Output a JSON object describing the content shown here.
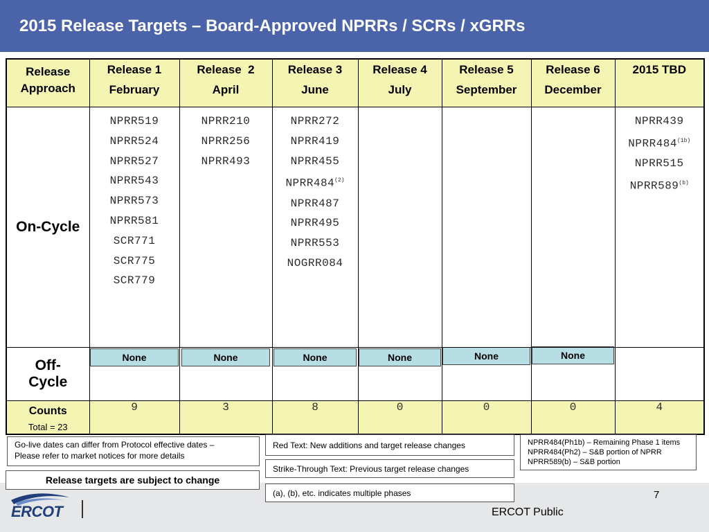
{
  "header": {
    "title": "2015 Release Targets – Board-Approved NPRRs / SCRs / xGRRs"
  },
  "table": {
    "approach_header": [
      "Release",
      "Approach"
    ],
    "columns": [
      {
        "name": "Release 1",
        "month": "February"
      },
      {
        "name": "Release  2",
        "month": "April"
      },
      {
        "name": "Release 3",
        "month": "June"
      },
      {
        "name": "Release 4",
        "month": "July"
      },
      {
        "name": "Release 5",
        "month": "September"
      },
      {
        "name": "Release 6",
        "month": "December"
      },
      {
        "name": "2015 TBD",
        "month": ""
      }
    ],
    "on_cycle_label": "On-Cycle",
    "on_cycle": {
      "release1": [
        "NPRR519",
        "NPRR524",
        "NPRR527",
        "NPRR543",
        "NPRR573",
        "NPRR581",
        "SCR771",
        "SCR775",
        "SCR779"
      ],
      "release2": [
        "NPRR210",
        "NPRR256",
        "NPRR493"
      ],
      "release3": [
        {
          "id": "NPRR272"
        },
        {
          "id": "NPRR419"
        },
        {
          "id": "NPRR455"
        },
        {
          "id": "NPRR484",
          "sup": "(2)"
        },
        {
          "id": "NPRR487"
        },
        {
          "id": "NPRR495"
        },
        {
          "id": "NPRR553"
        },
        {
          "id": "NOGRR084"
        }
      ],
      "tbd": [
        {
          "id": "NPRR439"
        },
        {
          "id": "NPRR484",
          "sup": "(1b)"
        },
        {
          "id": "NPRR515"
        },
        {
          "id": "NPRR589",
          "sup": "(b)"
        }
      ]
    },
    "off_cycle_label": [
      "Off-",
      "Cycle"
    ],
    "off_cycle_value": "None",
    "counts_label": "Counts",
    "counts_total": "Total = 23",
    "counts": [
      "9",
      "3",
      "8",
      "0",
      "0",
      "0",
      "4"
    ]
  },
  "notes": {
    "left": [
      "Go-live dates can differ from Protocol effective dates –",
      "Please refer to market notices for more details"
    ],
    "warning": "Release targets are subject to change",
    "red_text": "Red Text: New additions and target release changes",
    "strike_text": "Strike-Through Text: Previous target release changes",
    "phases": "(a), (b), etc. indicates multiple phases",
    "right": [
      "NPRR484(Ph1b) – Remaining Phase 1 items",
      "NPRR484(Ph2) – S&B portion of NPRR",
      "NPRR589(b) – S&B portion"
    ]
  },
  "footer": {
    "page_number": "7",
    "label": "ERCOT Public",
    "logo_text": "ERCOT"
  },
  "colors": {
    "header_bg": "#4b63a8",
    "header_row_bg": "#f5f5b3",
    "none_box_bg": "#b7dde5"
  }
}
